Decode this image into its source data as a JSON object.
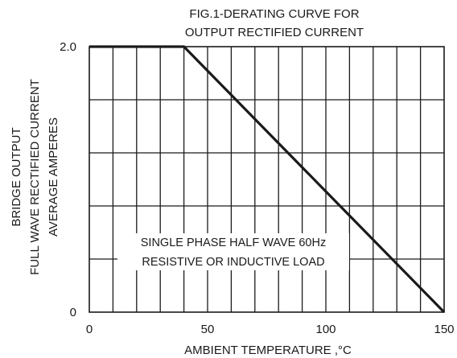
{
  "chart_data": {
    "type": "line",
    "title_lines": [
      "FIG.1-DERATING CURVE FOR",
      "OUTPUT RECTIFIED CURRENT"
    ],
    "xlabel": "AMBIENT TEMPERATURE ,°C",
    "ylabel_lines": [
      "BRIDGE OUTPUT",
      "FULL WAVE RECTIFIED CURRENT",
      "AVERAGE AMPERES"
    ],
    "xlim": [
      0,
      150
    ],
    "ylim": [
      0,
      2.0
    ],
    "x_ticks": [
      {
        "value": 0,
        "label": "0"
      },
      {
        "value": 50,
        "label": "50"
      },
      {
        "value": 100,
        "label": "100"
      },
      {
        "value": 150,
        "label": "150"
      }
    ],
    "y_ticks": [
      {
        "value": 0,
        "label": "0"
      },
      {
        "value": 2.0,
        "label": "2.0"
      }
    ],
    "grid": true,
    "grid_x_step": 10,
    "grid_y_count": 5,
    "series": [
      {
        "x": [
          0,
          40,
          150
        ],
        "y": [
          2.0,
          2.0,
          0
        ]
      }
    ],
    "annotation_lines": [
      "SINGLE PHASE HALF WAVE  60Hz",
      "RESISTIVE OR INDUCTIVE LOAD"
    ],
    "line_color": "#1a1a1a"
  }
}
